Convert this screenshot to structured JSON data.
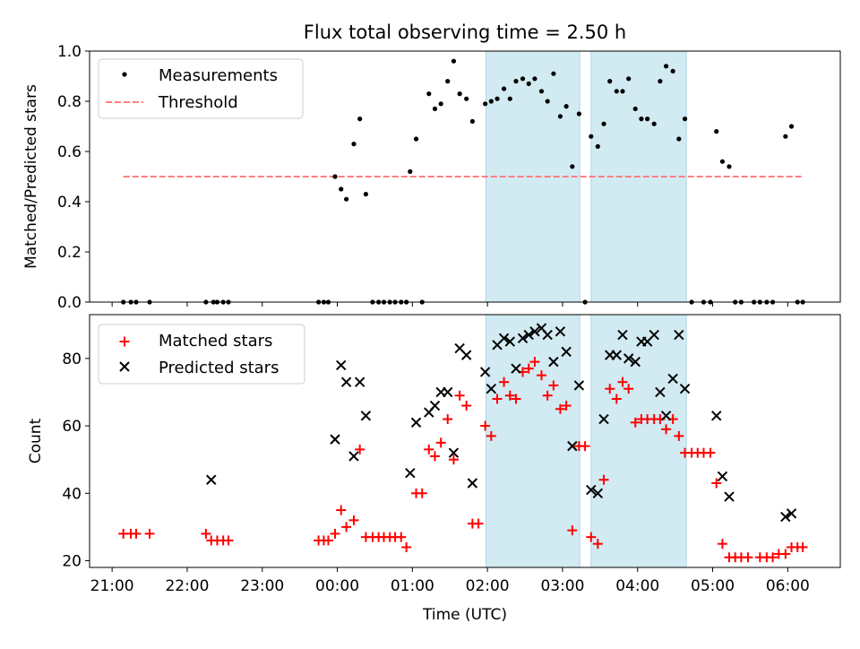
{
  "chart_data": [
    {
      "type": "scatter",
      "title": "Flux total observing time = 2.50 h",
      "ylabel": "Matched/Predicted stars",
      "xlabel": "",
      "ylim": [
        0,
        1
      ],
      "xlim_hours_after_midnight": [
        -3.3,
        6.7
      ],
      "yticks": [
        "0.0",
        "0.2",
        "0.4",
        "0.6",
        "0.8",
        "1.0"
      ],
      "shaded_intervals": [
        [
          1.98,
          3.23
        ],
        [
          3.38,
          4.65
        ]
      ],
      "shade_color": "#add8e6",
      "threshold": {
        "value": 0.5,
        "x_start": -2.85,
        "x_end": 6.2,
        "color": "#ff7f7f"
      },
      "legend": {
        "position": "top-left",
        "entries": [
          "Measurements",
          "Threshold"
        ]
      },
      "series": [
        {
          "name": "Measurements",
          "marker": "dot",
          "color": "#000000",
          "points": [
            [
              -2.85,
              0
            ],
            [
              -2.75,
              0
            ],
            [
              -2.68,
              0
            ],
            [
              -2.5,
              0
            ],
            [
              -1.75,
              0
            ],
            [
              -1.65,
              0
            ],
            [
              -1.6,
              0
            ],
            [
              -1.52,
              0
            ],
            [
              -1.45,
              0
            ],
            [
              -0.25,
              0
            ],
            [
              -0.18,
              0
            ],
            [
              -0.12,
              0
            ],
            [
              -0.03,
              0.5
            ],
            [
              0.05,
              0.45
            ],
            [
              0.12,
              0.41
            ],
            [
              0.22,
              0.63
            ],
            [
              0.3,
              0.73
            ],
            [
              0.38,
              0.43
            ],
            [
              0.47,
              0
            ],
            [
              0.55,
              0
            ],
            [
              0.62,
              0
            ],
            [
              0.7,
              0
            ],
            [
              0.77,
              0
            ],
            [
              0.85,
              0
            ],
            [
              0.92,
              0
            ],
            [
              0.97,
              0.52
            ],
            [
              1.05,
              0.65
            ],
            [
              1.13,
              0
            ],
            [
              1.22,
              0.83
            ],
            [
              1.3,
              0.77
            ],
            [
              1.38,
              0.79
            ],
            [
              1.47,
              0.88
            ],
            [
              1.55,
              0.96
            ],
            [
              1.63,
              0.83
            ],
            [
              1.72,
              0.81
            ],
            [
              1.8,
              0.72
            ],
            [
              1.97,
              0.79
            ],
            [
              2.05,
              0.8
            ],
            [
              2.13,
              0.81
            ],
            [
              2.22,
              0.85
            ],
            [
              2.3,
              0.81
            ],
            [
              2.38,
              0.88
            ],
            [
              2.47,
              0.89
            ],
            [
              2.55,
              0.87
            ],
            [
              2.63,
              0.89
            ],
            [
              2.72,
              0.84
            ],
            [
              2.8,
              0.8
            ],
            [
              2.88,
              0.91
            ],
            [
              2.97,
              0.74
            ],
            [
              3.05,
              0.78
            ],
            [
              3.13,
              0.54
            ],
            [
              3.22,
              0.75
            ],
            [
              3.3,
              0
            ],
            [
              3.38,
              0.66
            ],
            [
              3.47,
              0.62
            ],
            [
              3.55,
              0.71
            ],
            [
              3.63,
              0.88
            ],
            [
              3.72,
              0.84
            ],
            [
              3.8,
              0.84
            ],
            [
              3.88,
              0.89
            ],
            [
              3.97,
              0.77
            ],
            [
              4.05,
              0.73
            ],
            [
              4.13,
              0.73
            ],
            [
              4.22,
              0.71
            ],
            [
              4.3,
              0.88
            ],
            [
              4.38,
              0.94
            ],
            [
              4.47,
              0.92
            ],
            [
              4.55,
              0.65
            ],
            [
              4.63,
              0.73
            ],
            [
              4.72,
              0
            ],
            [
              4.88,
              0
            ],
            [
              4.97,
              0
            ],
            [
              5.05,
              0.68
            ],
            [
              5.13,
              0.56
            ],
            [
              5.22,
              0.54
            ],
            [
              5.3,
              0
            ],
            [
              5.38,
              0
            ],
            [
              5.55,
              0
            ],
            [
              5.63,
              0
            ],
            [
              5.72,
              0
            ],
            [
              5.8,
              0
            ],
            [
              5.97,
              0.66
            ],
            [
              6.05,
              0.7
            ],
            [
              6.13,
              0
            ],
            [
              6.2,
              0
            ]
          ]
        }
      ]
    },
    {
      "type": "scatter",
      "title": "",
      "ylabel": "Count",
      "xlabel": "Time (UTC)",
      "ylim": [
        18,
        93
      ],
      "yticks": [
        "20",
        "40",
        "60",
        "80"
      ],
      "xticks": [
        "21:00",
        "22:00",
        "23:00",
        "00:00",
        "01:00",
        "02:00",
        "03:00",
        "04:00",
        "05:00",
        "06:00"
      ],
      "legend": {
        "position": "top-left",
        "entries": [
          "Matched stars",
          "Predicted stars"
        ]
      },
      "series": [
        {
          "name": "Matched stars",
          "marker": "plus",
          "color": "#ff0000",
          "points": [
            [
              -2.85,
              28
            ],
            [
              -2.75,
              28
            ],
            [
              -2.68,
              28
            ],
            [
              -2.5,
              28
            ],
            [
              -1.75,
              28
            ],
            [
              -1.68,
              26
            ],
            [
              -1.6,
              26
            ],
            [
              -1.52,
              26
            ],
            [
              -1.45,
              26
            ],
            [
              -0.25,
              26
            ],
            [
              -0.18,
              26
            ],
            [
              -0.12,
              26
            ],
            [
              -0.03,
              28
            ],
            [
              0.05,
              35
            ],
            [
              0.12,
              30
            ],
            [
              0.22,
              32
            ],
            [
              0.3,
              53
            ],
            [
              0.38,
              27
            ],
            [
              0.47,
              27
            ],
            [
              0.55,
              27
            ],
            [
              0.62,
              27
            ],
            [
              0.7,
              27
            ],
            [
              0.77,
              27
            ],
            [
              0.85,
              27
            ],
            [
              0.92,
              24
            ],
            [
              1.05,
              40
            ],
            [
              1.13,
              40
            ],
            [
              1.22,
              53
            ],
            [
              1.3,
              51
            ],
            [
              1.38,
              55
            ],
            [
              1.47,
              62
            ],
            [
              1.55,
              50
            ],
            [
              1.63,
              69
            ],
            [
              1.72,
              66
            ],
            [
              1.8,
              31
            ],
            [
              1.88,
              31
            ],
            [
              1.97,
              60
            ],
            [
              2.05,
              57
            ],
            [
              2.13,
              68
            ],
            [
              2.22,
              73
            ],
            [
              2.3,
              69
            ],
            [
              2.38,
              68
            ],
            [
              2.47,
              76
            ],
            [
              2.55,
              77
            ],
            [
              2.63,
              79
            ],
            [
              2.72,
              75
            ],
            [
              2.8,
              69
            ],
            [
              2.88,
              72
            ],
            [
              2.97,
              65
            ],
            [
              3.05,
              66
            ],
            [
              3.13,
              29
            ],
            [
              3.22,
              54
            ],
            [
              3.3,
              54
            ],
            [
              3.38,
              27
            ],
            [
              3.47,
              25
            ],
            [
              3.55,
              44
            ],
            [
              3.63,
              71
            ],
            [
              3.72,
              68
            ],
            [
              3.8,
              73
            ],
            [
              3.88,
              71
            ],
            [
              3.97,
              61
            ],
            [
              4.05,
              62
            ],
            [
              4.13,
              62
            ],
            [
              4.22,
              62
            ],
            [
              4.3,
              62
            ],
            [
              4.38,
              59
            ],
            [
              4.47,
              62
            ],
            [
              4.55,
              57
            ],
            [
              4.63,
              52
            ],
            [
              4.72,
              52
            ],
            [
              4.8,
              52
            ],
            [
              4.88,
              52
            ],
            [
              4.97,
              52
            ],
            [
              5.05,
              43
            ],
            [
              5.13,
              25
            ],
            [
              5.22,
              21
            ],
            [
              5.3,
              21
            ],
            [
              5.38,
              21
            ],
            [
              5.47,
              21
            ],
            [
              5.63,
              21
            ],
            [
              5.72,
              21
            ],
            [
              5.8,
              21
            ],
            [
              5.88,
              22
            ],
            [
              5.97,
              22
            ],
            [
              6.05,
              24
            ],
            [
              6.13,
              24
            ],
            [
              6.2,
              24
            ]
          ]
        },
        {
          "name": "Predicted stars",
          "marker": "x",
          "color": "#000000",
          "points": [
            [
              -1.68,
              44
            ],
            [
              -0.03,
              56
            ],
            [
              0.05,
              78
            ],
            [
              0.12,
              73
            ],
            [
              0.22,
              51
            ],
            [
              0.3,
              73
            ],
            [
              0.38,
              63
            ],
            [
              0.97,
              46
            ],
            [
              1.05,
              61
            ],
            [
              1.22,
              64
            ],
            [
              1.3,
              66
            ],
            [
              1.38,
              70
            ],
            [
              1.47,
              70
            ],
            [
              1.55,
              52
            ],
            [
              1.63,
              83
            ],
            [
              1.72,
              81
            ],
            [
              1.8,
              43
            ],
            [
              1.97,
              76
            ],
            [
              2.05,
              71
            ],
            [
              2.13,
              84
            ],
            [
              2.22,
              86
            ],
            [
              2.3,
              85
            ],
            [
              2.38,
              77
            ],
            [
              2.47,
              86
            ],
            [
              2.55,
              87
            ],
            [
              2.63,
              88
            ],
            [
              2.72,
              89
            ],
            [
              2.8,
              87
            ],
            [
              2.88,
              79
            ],
            [
              2.97,
              88
            ],
            [
              3.05,
              82
            ],
            [
              3.13,
              54
            ],
            [
              3.22,
              72
            ],
            [
              3.38,
              41
            ],
            [
              3.47,
              40
            ],
            [
              3.55,
              62
            ],
            [
              3.63,
              81
            ],
            [
              3.72,
              81
            ],
            [
              3.8,
              87
            ],
            [
              3.88,
              80
            ],
            [
              3.97,
              79
            ],
            [
              4.05,
              85
            ],
            [
              4.13,
              85
            ],
            [
              4.22,
              87
            ],
            [
              4.3,
              70
            ],
            [
              4.38,
              63
            ],
            [
              4.47,
              74
            ],
            [
              4.55,
              87
            ],
            [
              4.63,
              71
            ],
            [
              5.05,
              63
            ],
            [
              5.13,
              45
            ],
            [
              5.22,
              39
            ],
            [
              5.97,
              33
            ],
            [
              6.05,
              34
            ]
          ]
        }
      ]
    }
  ]
}
